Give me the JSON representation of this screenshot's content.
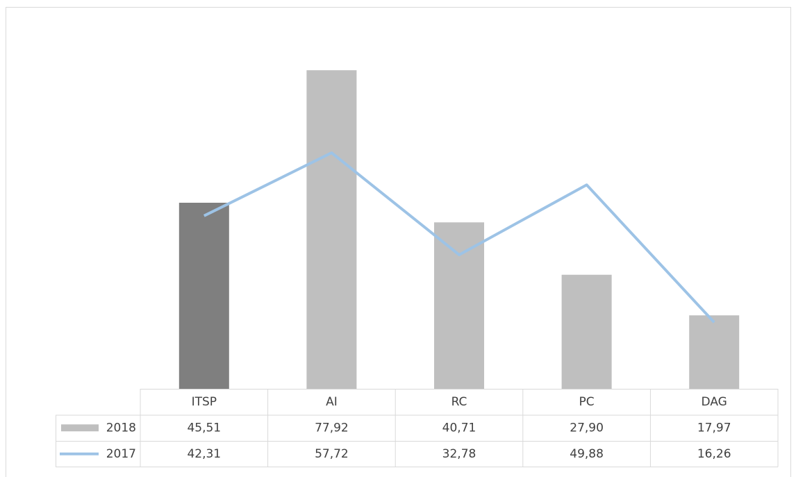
{
  "chart_data": {
    "type": "bar_line",
    "categories": [
      "ITSP",
      "AI",
      "RC",
      "PC",
      "DAG"
    ],
    "series": [
      {
        "name": "2018",
        "type": "bar",
        "color": "#bfbfbf",
        "colors": [
          "#7f7f7f",
          "#bfbfbf",
          "#bfbfbf",
          "#bfbfbf",
          "#bfbfbf"
        ],
        "values": [
          45.51,
          77.92,
          40.71,
          27.9,
          17.97
        ],
        "value_labels": [
          "45,51",
          "77,92",
          "40,71",
          "27,90",
          "17,97"
        ]
      },
      {
        "name": "2017",
        "type": "line",
        "color": "#9dc3e6",
        "values": [
          42.31,
          57.72,
          32.78,
          49.88,
          16.26
        ],
        "value_labels": [
          "42,31",
          "57,72",
          "32,78",
          "49,88",
          "16,26"
        ]
      }
    ],
    "ylim": [
      0,
      90
    ]
  }
}
